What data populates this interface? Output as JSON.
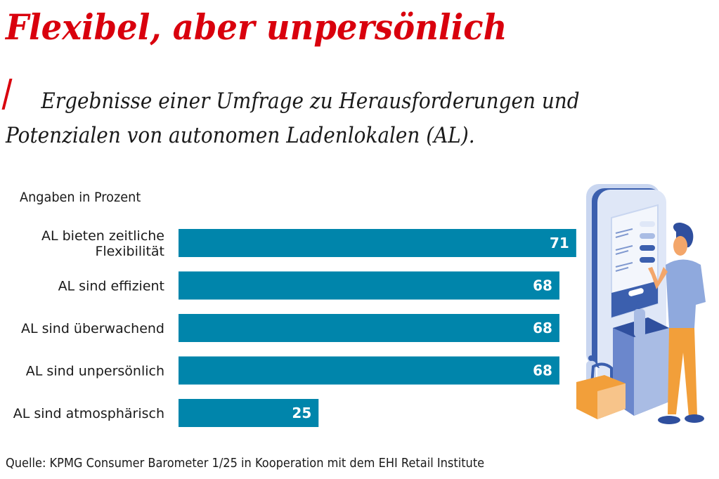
{
  "header": {
    "title": "Flexibel, aber unpersönlich",
    "subtitle_line1": "Ergebnisse einer Umfrage zu Herausforderungen und",
    "subtitle_line2": "Potenzialen von autonomen Ladenlokalen (AL)."
  },
  "unit_label": "Angaben in Prozent",
  "source": "Quelle: KPMG Consumer Barometer 1/25 in Kooperation mit dem EHI Retail Institute",
  "illustration": "person-at-self-service-kiosk-illustration",
  "colors": {
    "title": "#d9000d",
    "bar": "#0085ab",
    "bar_label": "#ffffff",
    "text": "#1a1a1a"
  },
  "chart_data": {
    "type": "bar",
    "orientation": "horizontal",
    "title": "Flexibel, aber unpersönlich",
    "xlabel": "",
    "ylabel": "Angaben in Prozent",
    "categories": [
      [
        "AL bieten zeitliche",
        "Flexibilität"
      ],
      [
        "AL sind effizient"
      ],
      [
        "AL sind überwachend"
      ],
      [
        "AL sind unpersönlich"
      ],
      [
        "AL sind atmosphärisch"
      ]
    ],
    "values": [
      71,
      68,
      68,
      68,
      25
    ],
    "xlim": [
      0,
      100
    ],
    "grid": false,
    "legend": "none",
    "data_labels": true
  }
}
